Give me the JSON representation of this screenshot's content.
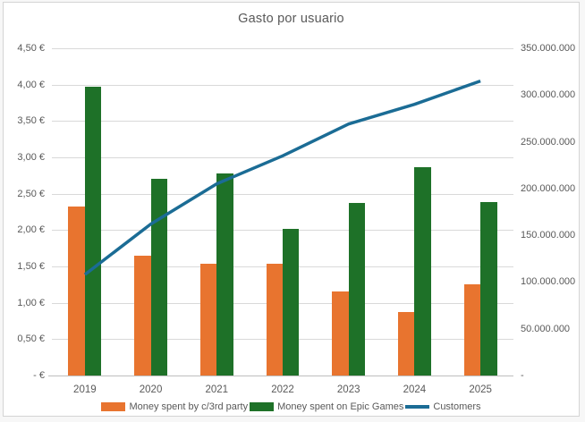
{
  "window": {
    "background": "#ffffff",
    "border_color": "#d4d4d4",
    "text_color": "#595959",
    "gridline_color": "#d9d9d9",
    "axis_line_color": "#bfbfbf"
  },
  "chart_data": {
    "type": "bar",
    "subtype": "grouped bars with overlay line, dual axes",
    "title": "Gasto por usuario",
    "categories": [
      "2019",
      "2020",
      "2021",
      "2022",
      "2023",
      "2024",
      "2025"
    ],
    "series": [
      {
        "name": "Money spent by c/3rd party",
        "type": "bar",
        "axis": "left",
        "color": "#e8742f",
        "values": [
          2.32,
          1.65,
          1.54,
          1.54,
          1.15,
          0.87,
          1.26
        ]
      },
      {
        "name": "Money spent on Epic Games",
        "type": "bar",
        "axis": "left",
        "color": "#1e7128",
        "values": [
          3.97,
          2.71,
          2.78,
          2.02,
          2.37,
          2.87,
          2.39
        ]
      },
      {
        "name": "Customers",
        "type": "line",
        "axis": "right",
        "color": "#1b6c95",
        "values": [
          108000000,
          162000000,
          205000000,
          235000000,
          269000000,
          290000000,
          315000000
        ]
      }
    ],
    "left_axis": {
      "min": 0,
      "max": 4.5,
      "step": 0.5,
      "tick_labels": [
        "- €",
        "0,50 €",
        "1,00 €",
        "1,50 €",
        "2,00 €",
        "2,50 €",
        "3,00 €",
        "3,50 €",
        "4,00 €",
        "4,50 €"
      ]
    },
    "right_axis": {
      "min": 0,
      "max": 350000000,
      "step": 50000000,
      "tick_labels": [
        "-",
        "50.000.000",
        "100.000.000",
        "150.000.000",
        "200.000.000",
        "250.000.000",
        "300.000.000",
        "350.000.000"
      ]
    },
    "grid": true,
    "legend_position": "bottom"
  }
}
